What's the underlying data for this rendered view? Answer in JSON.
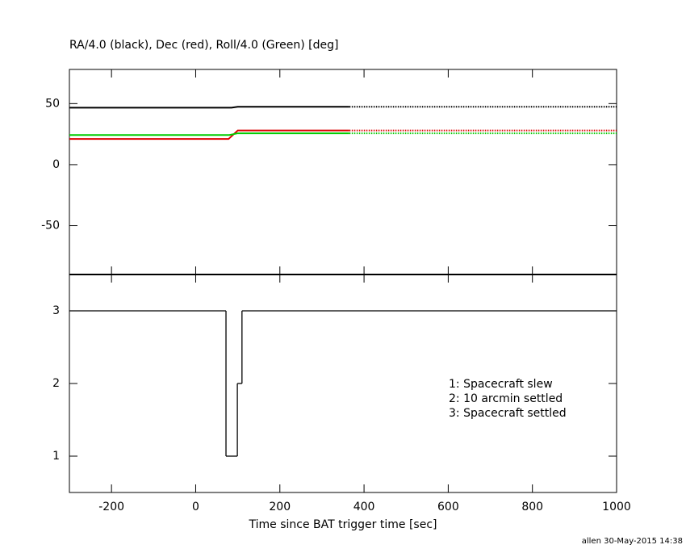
{
  "chart_data": [
    {
      "type": "line",
      "title": "RA/4.0 (black), Dec (red), Roll/4.0 (Green) [deg]",
      "xlim": [
        -300,
        1000
      ],
      "xticks": [
        -200,
        0,
        200,
        400,
        600,
        800,
        1000
      ],
      "ylim": [
        -90,
        78
      ],
      "yticks": [
        -50,
        0,
        50
      ],
      "series": [
        {
          "color": "#000000",
          "x": [
            -300,
            85,
            100,
            365
          ],
          "values": [
            46.7,
            46.7,
            47.4,
            47.4
          ]
        },
        {
          "color": "#000000",
          "dashed": true,
          "x": [
            365,
            1000
          ],
          "values": [
            47.4,
            47.4
          ]
        },
        {
          "color": "#dd0000",
          "x": [
            -300,
            78,
            100,
            365
          ],
          "values": [
            21,
            21,
            28,
            28
          ]
        },
        {
          "color": "#dd0000",
          "dashed": true,
          "x": [
            365,
            1000
          ],
          "values": [
            28,
            28
          ]
        },
        {
          "color": "#00cc00",
          "x": [
            -300,
            80,
            100,
            365
          ],
          "values": [
            24.3,
            24.3,
            25.7,
            25.7
          ]
        },
        {
          "color": "#00cc00",
          "dashed": true,
          "x": [
            365,
            1000
          ],
          "values": [
            25.7,
            25.7
          ]
        }
      ]
    },
    {
      "type": "step",
      "xlabel": "Time since BAT trigger time [sec]",
      "xlim": [
        -300,
        1000
      ],
      "xticks": [
        -200,
        0,
        200,
        400,
        600,
        800,
        1000
      ],
      "ylim": [
        0.5,
        3.5
      ],
      "yticks": [
        1,
        2,
        3
      ],
      "series": [
        {
          "color": "#000000",
          "x": [
            -300,
            72,
            99,
            110
          ],
          "values": [
            3,
            1,
            2,
            3
          ]
        }
      ],
      "annotations": [
        "1: Spacecraft slew",
        "2: 10 arcmin settled",
        "3: Spacecraft settled"
      ]
    }
  ],
  "footer": "allen 30-May-2015 14:38"
}
